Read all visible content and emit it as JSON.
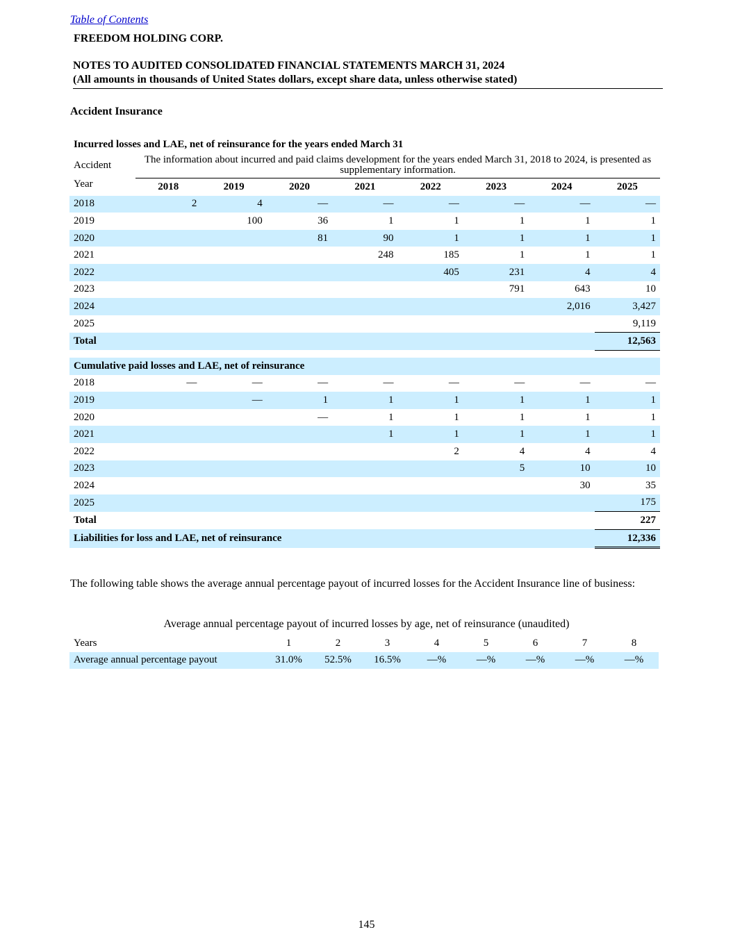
{
  "header": {
    "toc_link": "Table of Contents",
    "company": "FREEDOM HOLDING CORP.",
    "notes_title": "NOTES TO AUDITED CONSOLIDATED FINANCIAL STATEMENTS MARCH 31, 2024",
    "notes_subtitle": "(All amounts in thousands of United States dollars, except share data, unless otherwise stated)"
  },
  "section_title": "Accident Insurance",
  "incurred_table": {
    "title": "Incurred losses and LAE, net of reinsurance for the years ended March 31",
    "accident_label": "Accident",
    "year_label": "Year",
    "note": "The information about incurred and paid claims development for the years ended March 31, 2018 to 2024, is presented as supplementary information.",
    "columns": [
      "2018",
      "2019",
      "2020",
      "2021",
      "2022",
      "2023",
      "2024",
      "2025"
    ],
    "rows": [
      {
        "year": "2018",
        "values": [
          "2",
          "4",
          "—",
          "—",
          "—",
          "—",
          "—",
          "—"
        ]
      },
      {
        "year": "2019",
        "values": [
          null,
          "100",
          "36",
          "1",
          "1",
          "1",
          "1",
          "1"
        ]
      },
      {
        "year": "2020",
        "values": [
          null,
          null,
          "81",
          "90",
          "1",
          "1",
          "1",
          "1"
        ]
      },
      {
        "year": "2021",
        "values": [
          null,
          null,
          null,
          "248",
          "185",
          "1",
          "1",
          "1"
        ]
      },
      {
        "year": "2022",
        "values": [
          null,
          null,
          null,
          null,
          "405",
          "231",
          "4",
          "4"
        ]
      },
      {
        "year": "2023",
        "values": [
          null,
          null,
          null,
          null,
          null,
          "791",
          "643",
          "10"
        ]
      },
      {
        "year": "2024",
        "values": [
          null,
          null,
          null,
          null,
          null,
          null,
          "2,016",
          "3,427"
        ]
      },
      {
        "year": "2025",
        "values": [
          null,
          null,
          null,
          null,
          null,
          null,
          null,
          "9,119"
        ]
      }
    ],
    "total_label": "Total",
    "total_value": "12,563"
  },
  "paid_table": {
    "title": "Cumulative paid losses and LAE, net of reinsurance",
    "rows": [
      {
        "year": "2018",
        "values": [
          "—",
          "—",
          "—",
          "—",
          "—",
          "—",
          "—",
          "—"
        ]
      },
      {
        "year": "2019",
        "values": [
          null,
          "—",
          "1",
          "1",
          "1",
          "1",
          "1",
          "1"
        ]
      },
      {
        "year": "2020",
        "values": [
          null,
          null,
          "—",
          "1",
          "1",
          "1",
          "1",
          "1"
        ]
      },
      {
        "year": "2021",
        "values": [
          null,
          null,
          null,
          "1",
          "1",
          "1",
          "1",
          "1"
        ]
      },
      {
        "year": "2022",
        "values": [
          null,
          null,
          null,
          null,
          "2",
          "4",
          "4",
          "4"
        ]
      },
      {
        "year": "2023",
        "values": [
          null,
          null,
          null,
          null,
          null,
          "5",
          "10",
          "10"
        ]
      },
      {
        "year": "2024",
        "values": [
          null,
          null,
          null,
          null,
          null,
          null,
          "30",
          "35"
        ]
      },
      {
        "year": "2025",
        "values": [
          null,
          null,
          null,
          null,
          null,
          null,
          null,
          "175"
        ]
      }
    ],
    "total_label": "Total",
    "total_value": "227",
    "liabilities_label": "Liabilities for loss and LAE, net of reinsurance",
    "liabilities_value": "12,336"
  },
  "payout": {
    "intro": "The following table shows the average annual percentage payout of incurred losses for the Accident Insurance line of business:",
    "title": "Average annual percentage payout of incurred losses by age, net of reinsurance (unaudited)",
    "years_label": "Years",
    "ages": [
      "1",
      "2",
      "3",
      "4",
      "5",
      "6",
      "7",
      "8"
    ],
    "row_label": "Average annual percentage payout",
    "values": [
      "31.0%",
      "52.5%",
      "16.5%",
      "—%",
      "—%",
      "—%",
      "—%",
      "—%"
    ]
  },
  "page_number": "145"
}
